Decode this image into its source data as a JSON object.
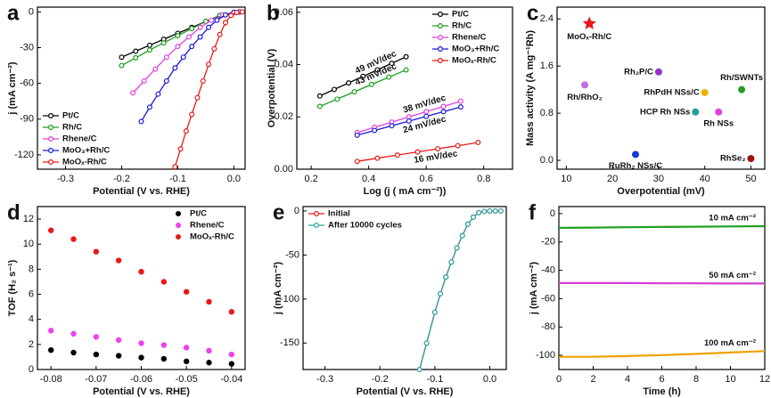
{
  "chart_data": [
    {
      "type": "line",
      "panel": "a",
      "xlabel": "Potential (V vs. RHE)",
      "ylabel": "j (mA cm⁻²)",
      "xlim": [
        -0.35,
        0.02
      ],
      "ylim": [
        -132,
        4
      ],
      "xticks": [
        -0.3,
        -0.2,
        -0.1,
        {
          "value": 0,
          "label": "0.0"
        }
      ],
      "yticks": [
        0,
        -30,
        -60,
        -90,
        -120
      ],
      "legend": "lower left",
      "markers": true,
      "series": [
        {
          "name": "Pt/C",
          "color": "#000000",
          "x": [
            -0.2,
            -0.175,
            -0.15,
            -0.125,
            -0.1,
            -0.075,
            -0.05,
            -0.025,
            0,
            0.01
          ],
          "values": [
            -38,
            -33,
            -28,
            -23,
            -18,
            -13,
            -8,
            -3,
            -0.5,
            0
          ]
        },
        {
          "name": "Rh/C",
          "color": "#1a9e1a",
          "x": [
            -0.2,
            -0.175,
            -0.15,
            -0.125,
            -0.1,
            -0.075,
            -0.05,
            -0.025,
            0,
            0.01
          ],
          "values": [
            -45,
            -38.5,
            -32,
            -26,
            -20,
            -14,
            -8,
            -3,
            -0.5,
            0
          ]
        },
        {
          "name": "Rhene/C",
          "color": "#e040e0",
          "x": [
            -0.18,
            -0.16,
            -0.14,
            -0.12,
            -0.1,
            -0.08,
            -0.06,
            -0.04,
            -0.02,
            0,
            0.01
          ],
          "values": [
            -68,
            -58,
            -48,
            -38,
            -29,
            -21,
            -13,
            -7,
            -2.5,
            -0.5,
            0
          ]
        },
        {
          "name": "MoO₃+Rh/C",
          "color": "#1a1ad6",
          "x": [
            -0.165,
            -0.15,
            -0.135,
            -0.12,
            -0.105,
            -0.09,
            -0.075,
            -0.06,
            -0.045,
            -0.03,
            -0.015,
            0,
            0.01
          ],
          "values": [
            -92,
            -80,
            -69,
            -58,
            -47,
            -38,
            -29,
            -21,
            -13,
            -7,
            -2.5,
            -0.3,
            0
          ]
        },
        {
          "name": "MoOₓ-Rh/C",
          "color": "#e81818",
          "x": [
            -0.105,
            -0.095,
            -0.085,
            -0.075,
            -0.065,
            -0.055,
            -0.045,
            -0.035,
            -0.025,
            -0.015,
            -0.005,
            0.005,
            0.015
          ],
          "values": [
            -130,
            -115,
            -100,
            -86,
            -72,
            -58,
            -44,
            -31,
            -19,
            -9,
            -3,
            -0.5,
            0
          ]
        }
      ]
    },
    {
      "type": "line",
      "panel": "b",
      "xlabel": "Log (j ( mA cm⁻²))",
      "ylabel": "Overpotential (V)",
      "xlim": [
        0.15,
        0.9
      ],
      "ylim": [
        0,
        0.062
      ],
      "xticks": [
        0.2,
        0.4,
        0.6,
        0.8
      ],
      "yticks": [
        {
          "value": 0,
          "label": "0.00"
        },
        {
          "value": 0.02,
          "label": "0.02"
        },
        {
          "value": 0.04,
          "label": "0.04"
        },
        {
          "value": 0.06,
          "label": "0.06"
        }
      ],
      "legend": "upper right",
      "markers": true,
      "series": [
        {
          "name": "Pt/C",
          "color": "#000000",
          "label": "49 mV/dec",
          "x": [
            0.23,
            0.28,
            0.33,
            0.38,
            0.43,
            0.48,
            0.53
          ],
          "values": [
            0.028,
            0.0305,
            0.033,
            0.0355,
            0.038,
            0.0405,
            0.043
          ]
        },
        {
          "name": "Rh/C",
          "color": "#1a9e1a",
          "label": "43 mV/dec",
          "x": [
            0.23,
            0.29,
            0.35,
            0.41,
            0.47,
            0.53
          ],
          "values": [
            0.024,
            0.0268,
            0.0296,
            0.0324,
            0.0352,
            0.038
          ]
        },
        {
          "name": "Rhene/C",
          "color": "#e040e0",
          "label": "38 mV/dec",
          "x": [
            0.36,
            0.42,
            0.48,
            0.54,
            0.6,
            0.66,
            0.72
          ],
          "values": [
            0.014,
            0.016,
            0.018,
            0.02,
            0.022,
            0.024,
            0.026
          ]
        },
        {
          "name": "MoO₃+Rh/C",
          "color": "#1a1ad6",
          "label": "24 mV/dec",
          "x": [
            0.36,
            0.42,
            0.48,
            0.54,
            0.6,
            0.66,
            0.72
          ],
          "values": [
            0.013,
            0.0148,
            0.0166,
            0.0184,
            0.0202,
            0.022,
            0.0238
          ]
        },
        {
          "name": "MoOₓ-Rh/C",
          "color": "#e81818",
          "label": "16 mV/dec",
          "x": [
            0.36,
            0.43,
            0.5,
            0.57,
            0.64,
            0.71,
            0.78
          ],
          "values": [
            0.003,
            0.0042,
            0.0054,
            0.0066,
            0.0078,
            0.009,
            0.0102
          ]
        }
      ]
    },
    {
      "type": "scatter",
      "panel": "c",
      "xlabel": "Overpotential (mV)",
      "ylabel": "Mass activity (A mg⁻¹Rh)",
      "xlim": [
        8,
        53
      ],
      "ylim": [
        -0.15,
        2.6
      ],
      "xticks": [
        10,
        20,
        30,
        40,
        50
      ],
      "yticks": [
        {
          "value": 0,
          "label": "0.0"
        },
        0.8,
        1.6,
        2.4
      ],
      "series": [
        {
          "name": "MoOₓ-Rh/C",
          "color": "#e81818",
          "marker": "star",
          "x": [
            15
          ],
          "values": [
            2.32
          ]
        },
        {
          "name": "Rh/RhO₂",
          "color": "#c070e0",
          "x": [
            14
          ],
          "values": [
            1.28
          ]
        },
        {
          "name": "Rh₂P/C",
          "color": "#9a30d0",
          "x": [
            30
          ],
          "values": [
            1.5
          ]
        },
        {
          "name": "RhPdH NSs/C",
          "color": "#f0b000",
          "x": [
            40
          ],
          "values": [
            1.15
          ]
        },
        {
          "name": "Rh/SWNTs",
          "color": "#2a9a2a",
          "x": [
            48
          ],
          "values": [
            1.2
          ]
        },
        {
          "name": "HCP Rh NSs",
          "color": "#20a0a0",
          "x": [
            38
          ],
          "values": [
            0.82
          ]
        },
        {
          "name": "Rh NSs",
          "color": "#e040e0",
          "x": [
            43
          ],
          "values": [
            0.82
          ]
        },
        {
          "name": "RuRh₂ NSs/C",
          "color": "#1a3ad6",
          "x": [
            25
          ],
          "values": [
            0.1
          ]
        },
        {
          "name": "RhSe₂",
          "color": "#a01010",
          "x": [
            50
          ],
          "values": [
            0.03
          ]
        }
      ]
    },
    {
      "type": "scatter",
      "panel": "d",
      "xlabel": "Potential (V vs. RHE)",
      "ylabel": "TOF (H₂ s⁻¹)",
      "xlim": [
        -0.083,
        -0.037
      ],
      "ylim": [
        0,
        13
      ],
      "xticks": [
        -0.08,
        -0.07,
        -0.06,
        -0.05,
        -0.04
      ],
      "yticks": [
        0,
        2,
        4,
        6,
        8,
        10,
        12
      ],
      "legend": "upper right",
      "x": [
        -0.08,
        -0.075,
        -0.07,
        -0.065,
        -0.06,
        -0.055,
        -0.05,
        -0.045,
        -0.04
      ],
      "series": [
        {
          "name": "Pt/C",
          "color": "#000000",
          "values": [
            1.55,
            1.35,
            1.2,
            1.1,
            0.95,
            0.85,
            0.65,
            0.55,
            0.45
          ]
        },
        {
          "name": "Rhene/C",
          "color": "#f040f0",
          "values": [
            3.1,
            2.85,
            2.6,
            2.35,
            2.1,
            1.95,
            1.75,
            1.5,
            1.2
          ]
        },
        {
          "name": "MoOₓ-Rh/C",
          "color": "#e81818",
          "values": [
            11.1,
            10.4,
            9.4,
            8.7,
            7.8,
            7.0,
            6.2,
            5.4,
            4.6
          ]
        }
      ]
    },
    {
      "type": "line",
      "panel": "e",
      "xlabel": "Potential (V vs. RHE)",
      "ylabel": "j (mA cm⁻²)",
      "xlim": [
        -0.34,
        0.03
      ],
      "ylim": [
        -180,
        5
      ],
      "xticks": [
        -0.3,
        -0.2,
        -0.1,
        {
          "value": 0,
          "label": "0.0"
        }
      ],
      "yticks": [
        0,
        -50,
        -100,
        -150
      ],
      "legend": "upper left",
      "markers": true,
      "series": [
        {
          "name": "Initial",
          "color": "#e81818",
          "x": [
            -0.128,
            -0.115,
            -0.1,
            -0.09,
            -0.08,
            -0.07,
            -0.06,
            -0.05,
            -0.04,
            -0.03,
            -0.02,
            -0.01,
            0,
            0.01,
            0.02
          ],
          "values": [
            -180,
            -150,
            -115,
            -94,
            -75,
            -58,
            -42,
            -28,
            -15,
            -7,
            -2,
            -0.5,
            0,
            0,
            0
          ]
        },
        {
          "name": "After 10000 cycles",
          "color": "#2aa5a5",
          "x": [
            -0.128,
            -0.115,
            -0.1,
            -0.09,
            -0.08,
            -0.07,
            -0.06,
            -0.05,
            -0.04,
            -0.03,
            -0.02,
            -0.01,
            0,
            0.01,
            0.02
          ],
          "values": [
            -180,
            -150,
            -115,
            -94,
            -75,
            -58,
            -42,
            -28,
            -15,
            -7,
            -2,
            -0.5,
            0,
            0,
            0
          ]
        }
      ]
    },
    {
      "type": "line",
      "panel": "f",
      "xlabel": "Time (h)",
      "ylabel": "j (mA cm⁻²)",
      "xlim": [
        0,
        12
      ],
      "ylim": [
        -110,
        5
      ],
      "xticks": [
        0,
        2,
        4,
        6,
        8,
        10,
        12
      ],
      "yticks": [
        0,
        -20,
        -40,
        -60,
        -80,
        -100
      ],
      "markers": false,
      "series": [
        {
          "name": "10 mA cm⁻²",
          "color": "#22a022",
          "x": [
            0,
            2,
            4,
            6,
            8,
            10,
            12
          ],
          "values": [
            -10,
            -9.8,
            -9.6,
            -9.4,
            -9.2,
            -9,
            -8.8
          ]
        },
        {
          "name": "50 mA cm⁻²",
          "color": "#d63ad6",
          "x": [
            0,
            2,
            4,
            6,
            8,
            10,
            12
          ],
          "values": [
            -49,
            -49,
            -49,
            -49.2,
            -49.2,
            -49.3,
            -49.3
          ]
        },
        {
          "name": "100 mA cm⁻²",
          "color": "#f0a000",
          "x": [
            0,
            2,
            4,
            6,
            8,
            10,
            12
          ],
          "values": [
            -101,
            -101,
            -100.5,
            -99.8,
            -99,
            -98,
            -97
          ]
        }
      ]
    }
  ]
}
